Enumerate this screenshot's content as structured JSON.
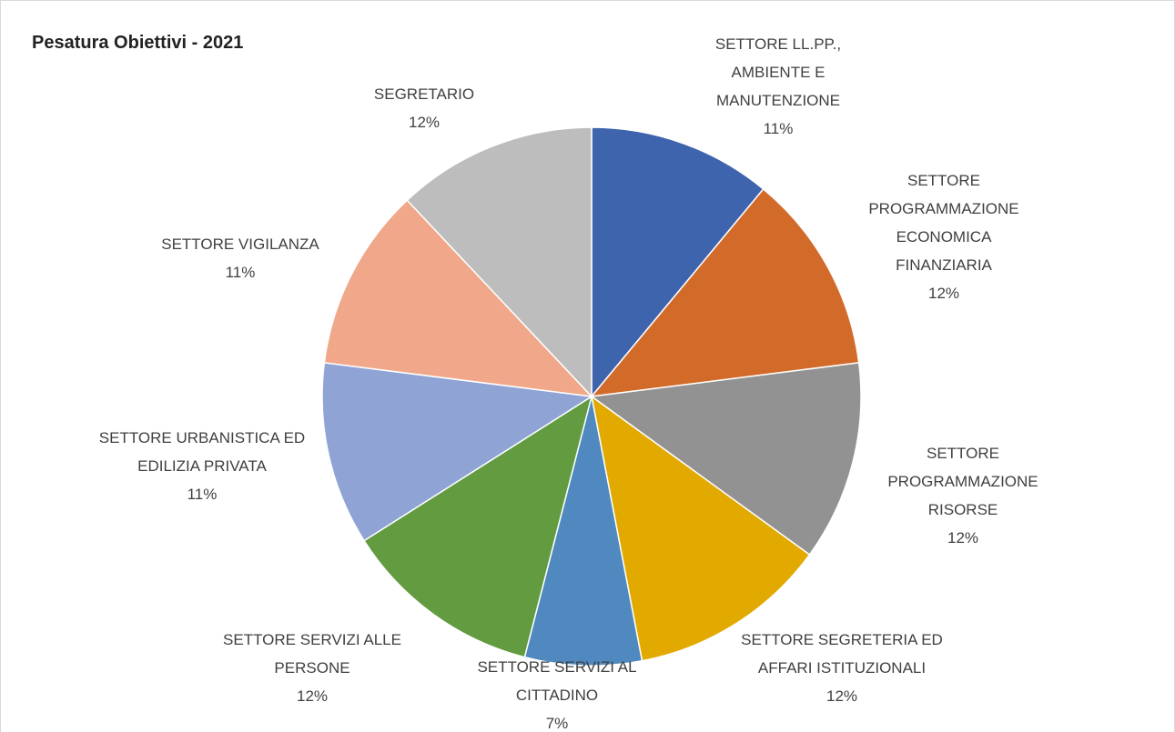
{
  "chart_data": {
    "type": "pie",
    "title": "Pesatura Obiettivi - 2021",
    "categories": [
      "SETTORE LL.PP., AMBIENTE E MANUTENZIONE",
      "SETTORE PROGRAMMAZIONE ECONOMICA FINANZIARIA",
      "SETTORE PROGRAMMAZIONE RISORSE",
      "SETTORE SEGRETERIA ED AFFARI ISTITUZIONALI",
      "SETTORE SERVIZI AL CITTADINO",
      "SETTORE SERVIZI ALLE PERSONE",
      "SETTORE URBANISTICA ED EDILIZIA PRIVATA",
      "SETTORE VIGILANZA",
      "SEGRETARIO"
    ],
    "values": [
      11,
      12,
      12,
      12,
      7,
      12,
      11,
      11,
      12
    ],
    "value_labels": [
      "11%",
      "12%",
      "12%",
      "12%",
      "7%",
      "12%",
      "11%",
      "11%",
      "12%"
    ],
    "colors": [
      "#3d64ad",
      "#d26b2a",
      "#929292",
      "#e2aa00",
      "#4f89bf",
      "#629b40",
      "#8fa3d5",
      "#f0a78a",
      "#bdbdbd"
    ]
  }
}
